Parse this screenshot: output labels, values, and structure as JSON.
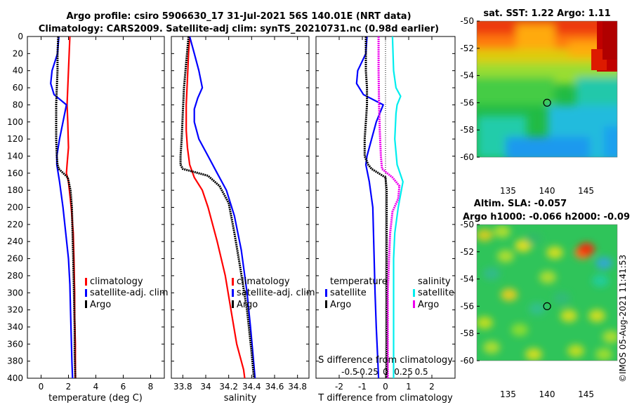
{
  "header": {
    "title_line1": "Argo profile: csiro 5906630_17 31-Jul-2021 56S 140.01E (NRT data)",
    "title_line2": "Climatology: CARS2009. Satellite-adj clim: synTS_20210731.nc (0.98d earlier)"
  },
  "copyright": "©IMOS 05-Aug-2021 11:41:53",
  "colors": {
    "climatology": "#ff0000",
    "satellite": "#0000ff",
    "argo": "#000000",
    "satellite_salinity": "#00eeee",
    "argo_salinity": "#ee00ee"
  },
  "chart_data": [
    {
      "name": "temperature-panel",
      "type": "line",
      "xlabel": "temperature (deg C)",
      "ylabel": "",
      "xlim": [
        -1,
        9
      ],
      "ylim": [
        400,
        0
      ],
      "xticks": [
        "0",
        "2",
        "4",
        "6",
        "8"
      ],
      "yticks": [
        "0",
        "20",
        "40",
        "60",
        "80",
        "100",
        "120",
        "140",
        "160",
        "180",
        "200",
        "220",
        "240",
        "260",
        "280",
        "300",
        "320",
        "340",
        "360",
        "380",
        "400"
      ],
      "legend": {
        "position": "lower-right",
        "entries": [
          "climatology",
          "satellite-adj. clim",
          "Argo"
        ]
      },
      "series": [
        {
          "name": "climatology",
          "color": "#ff0000",
          "x": [
            2.1,
            2.05,
            2.0,
            1.95,
            1.9,
            1.95,
            2.0,
            1.9,
            1.85,
            2.0,
            2.2,
            2.35,
            2.4,
            2.45,
            2.45,
            2.5,
            2.5
          ],
          "y": [
            0,
            20,
            40,
            60,
            80,
            100,
            130,
            150,
            160,
            170,
            200,
            230,
            260,
            300,
            330,
            360,
            400
          ]
        },
        {
          "name": "satellite-adj. clim",
          "color": "#0000ff",
          "x": [
            1.3,
            1.2,
            0.8,
            0.7,
            0.95,
            1.85,
            1.6,
            1.35,
            1.15,
            1.15,
            1.35,
            1.6,
            1.8,
            2.0,
            2.1,
            2.15,
            2.2,
            2.25,
            2.3
          ],
          "y": [
            0,
            20,
            40,
            55,
            68,
            80,
            100,
            120,
            140,
            150,
            170,
            200,
            230,
            260,
            290,
            320,
            350,
            380,
            400
          ]
        },
        {
          "name": "Argo",
          "color": "#000000",
          "x": [
            1.25,
            1.2,
            1.2,
            1.15,
            1.1,
            1.1,
            1.1,
            1.15,
            1.2,
            1.3,
            1.95,
            2.15,
            2.25,
            2.3,
            2.35,
            2.4,
            2.45,
            2.45,
            2.5
          ],
          "y": [
            0,
            20,
            40,
            60,
            80,
            100,
            120,
            140,
            150,
            155,
            165,
            180,
            200,
            230,
            260,
            300,
            340,
            370,
            400
          ]
        }
      ]
    },
    {
      "name": "salinity-panel",
      "type": "line",
      "xlabel": "salinity",
      "xlim": [
        33.7,
        34.9
      ],
      "ylim": [
        400,
        0
      ],
      "xticks": [
        "33.8",
        "34",
        "34.2",
        "34.4",
        "34.6",
        "34.8"
      ],
      "legend": {
        "position": "lower-right",
        "entries": [
          "climatology",
          "satellite-adj. clim",
          "Argo"
        ]
      },
      "series": [
        {
          "name": "climatology",
          "color": "#ff0000",
          "x": [
            33.86,
            33.85,
            33.84,
            33.83,
            33.83,
            33.84,
            33.86,
            33.9,
            33.97,
            34.02,
            34.1,
            34.17,
            34.22,
            34.27,
            34.33,
            34.34
          ],
          "y": [
            0,
            20,
            50,
            80,
            110,
            130,
            150,
            165,
            180,
            200,
            240,
            280,
            320,
            360,
            390,
            400
          ]
        },
        {
          "name": "satellite-adj. clim",
          "color": "#0000ff",
          "x": [
            33.86,
            33.9,
            33.94,
            33.97,
            33.93,
            33.9,
            33.9,
            33.94,
            34.02,
            34.1,
            34.18,
            34.25,
            34.31,
            34.36,
            34.39,
            34.41,
            34.43
          ],
          "y": [
            0,
            20,
            40,
            60,
            72,
            85,
            100,
            120,
            140,
            160,
            180,
            210,
            250,
            300,
            340,
            370,
            400
          ]
        },
        {
          "name": "Argo",
          "color": "#000000",
          "x": [
            33.85,
            33.83,
            33.81,
            33.8,
            33.79,
            33.78,
            33.78,
            33.8,
            34.02,
            34.12,
            34.2,
            34.25,
            34.3,
            34.36,
            34.4,
            34.42
          ],
          "y": [
            0,
            30,
            60,
            90,
            120,
            140,
            150,
            155,
            163,
            175,
            195,
            230,
            270,
            320,
            370,
            400
          ]
        }
      ]
    },
    {
      "name": "difference-panel",
      "type": "line",
      "xlabel": "T difference from climatology",
      "xlabel_top": "S difference from climatology",
      "xlim": [
        -3,
        3
      ],
      "ylim": [
        400,
        0
      ],
      "xticks": [
        "-2",
        "-1",
        "0",
        "1",
        "2"
      ],
      "xticks_S": [
        "-0.5",
        "-0.25",
        "0",
        "0.25",
        "0.5"
      ],
      "legend_temperature": {
        "title": "temperature",
        "entries": [
          "satellite",
          "Argo"
        ]
      },
      "legend_salinity": {
        "title": "salinity",
        "entries": [
          "satellite",
          "Argo"
        ]
      },
      "series": [
        {
          "name": "temperature satellite",
          "color": "#0000ff",
          "x": [
            -0.8,
            -0.85,
            -1.2,
            -1.25,
            -0.95,
            -0.1,
            -0.4,
            -0.6,
            -0.8,
            -0.85,
            -0.7,
            -0.55,
            -0.5,
            -0.45,
            -0.4,
            -0.35,
            -0.3
          ],
          "y": [
            0,
            20,
            40,
            55,
            68,
            80,
            100,
            120,
            140,
            150,
            170,
            200,
            250,
            300,
            340,
            370,
            400
          ]
        },
        {
          "name": "temperature Argo",
          "color": "#000000",
          "x": [
            -0.85,
            -0.85,
            -0.8,
            -0.8,
            -0.85,
            -0.9,
            -0.9,
            -0.75,
            -0.6,
            0.0,
            0.05,
            0.05,
            0.05,
            0.05,
            0.05
          ],
          "y": [
            0,
            40,
            60,
            80,
            100,
            120,
            140,
            150,
            155,
            165,
            180,
            220,
            280,
            340,
            400
          ]
        },
        {
          "name": "salinity satellite",
          "color": "#00eeee",
          "x": [
            0.3,
            0.35,
            0.45,
            0.65,
            0.5,
            0.45,
            0.4,
            0.5,
            0.75,
            0.55,
            0.4,
            0.35,
            0.35,
            0.35,
            0.35
          ],
          "y": [
            0,
            40,
            60,
            70,
            80,
            90,
            120,
            150,
            170,
            200,
            230,
            260,
            300,
            350,
            400
          ]
        },
        {
          "name": "salinity Argo",
          "color": "#ee00ee",
          "x": [
            -0.3,
            -0.3,
            -0.28,
            -0.25,
            -0.2,
            -0.15,
            0.3,
            0.6,
            0.55,
            0.3,
            0.2,
            0.15,
            0.1,
            0.1,
            0.1
          ],
          "y": [
            0,
            40,
            80,
            110,
            140,
            155,
            165,
            175,
            190,
            205,
            230,
            260,
            300,
            350,
            400
          ]
        }
      ]
    },
    {
      "name": "sst-map",
      "type": "heatmap",
      "title": "sat. SST: 1.22 Argo: 1.11",
      "xlim": [
        131,
        149
      ],
      "ylim": [
        -60,
        -50
      ],
      "xticks": [
        "135",
        "140",
        "145"
      ],
      "yticks": [
        "-50",
        "-52",
        "-54",
        "-56",
        "-58",
        "-60"
      ],
      "marker": {
        "lon": 140.01,
        "lat": -56
      }
    },
    {
      "name": "sla-map",
      "type": "heatmap",
      "title_line1": "Altim. SLA: -0.057",
      "title_line2": "Argo h1000: -0.066 h2000: -0.09",
      "xlim": [
        131,
        149
      ],
      "ylim": [
        -60,
        -50
      ],
      "xticks": [
        "135",
        "140",
        "145"
      ],
      "yticks": [
        "-50",
        "-52",
        "-54",
        "-56",
        "-58",
        "-60"
      ],
      "marker": {
        "lon": 140.01,
        "lat": -56
      }
    }
  ]
}
